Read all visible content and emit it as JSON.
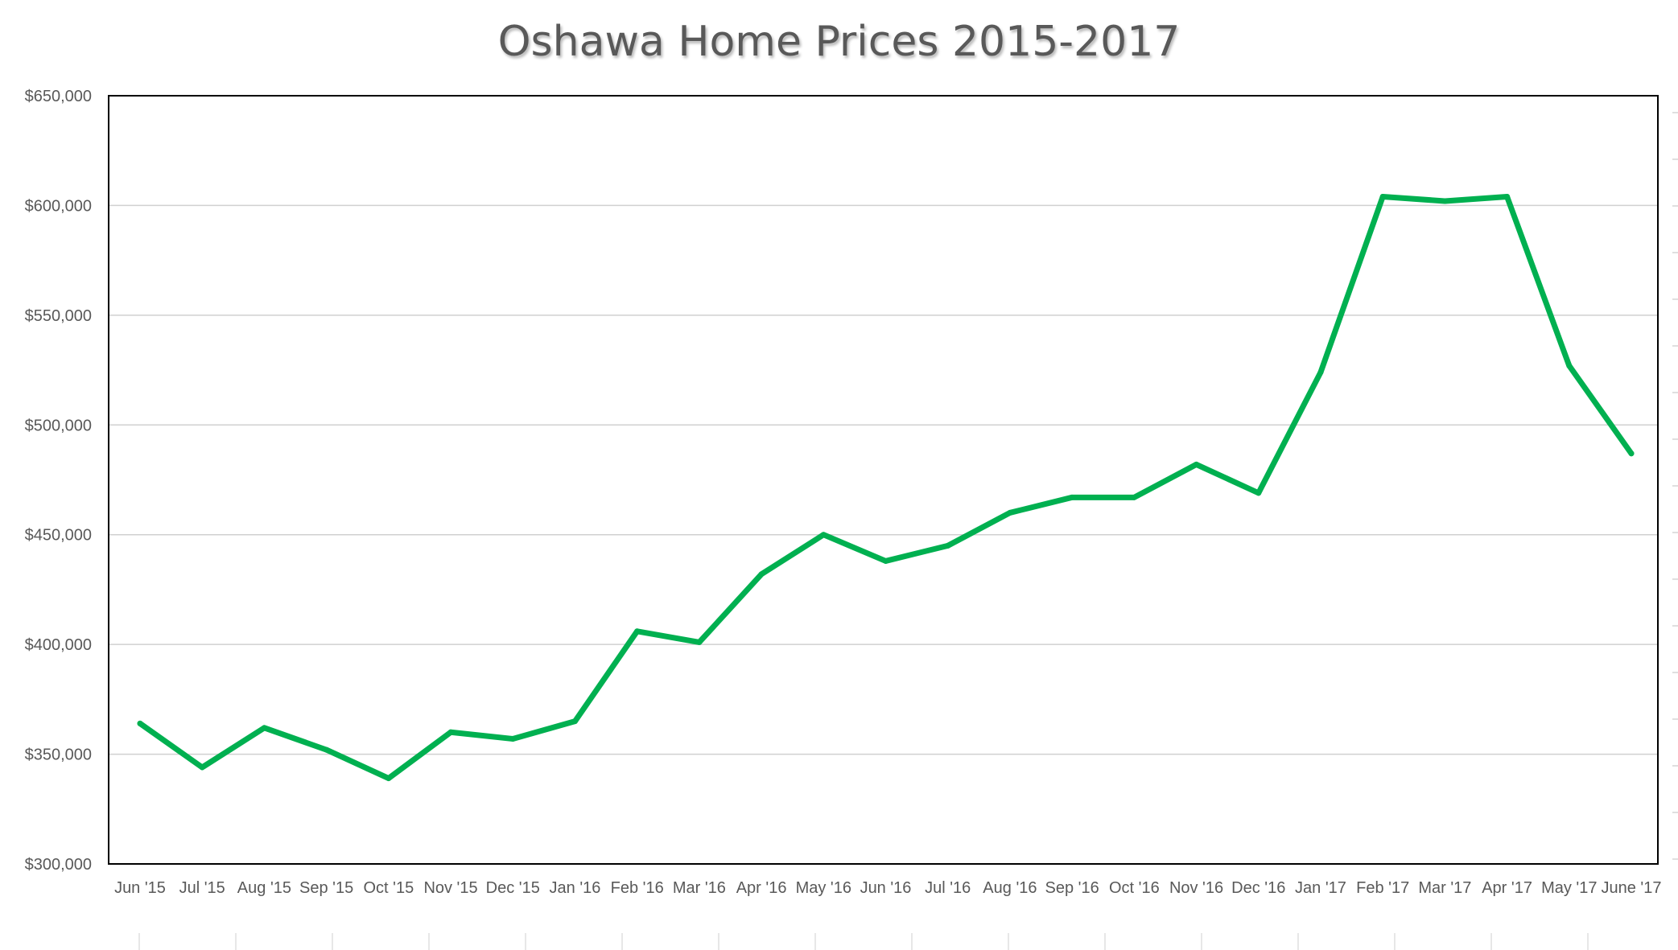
{
  "chart_data": {
    "type": "line",
    "title": "Oshawa Home Prices 2015-2017",
    "xlabel": "",
    "ylabel": "",
    "ylim": [
      300000,
      650000
    ],
    "y_ticks": [
      300000,
      350000,
      400000,
      450000,
      500000,
      550000,
      600000,
      650000
    ],
    "y_tick_labels": [
      "$300,000",
      "$350,000",
      "$400,000",
      "$450,000",
      "$500,000",
      "$550,000",
      "$600,000",
      "$650,000"
    ],
    "grid": "horizontal",
    "legend": "none",
    "categories": [
      "Jun '15",
      "Jul '15",
      "Aug '15",
      "Sep '15",
      "Oct '15",
      "Nov '15",
      "Dec '15",
      "Jan '16",
      "Feb '16",
      "Mar '16",
      "Apr '16",
      "May '16",
      "Jun '16",
      "Jul '16",
      "Aug '16",
      "Sep '16",
      "Oct '16",
      "Nov '16",
      "Dec '16",
      "Jan '17",
      "Feb '17",
      "Mar '17",
      "Apr '17",
      "May '17",
      "June '17"
    ],
    "series": [
      {
        "color": "#00b050",
        "values": [
          364000,
          344000,
          362000,
          352000,
          339000,
          360000,
          357000,
          365000,
          406000,
          401000,
          432000,
          450000,
          438000,
          445000,
          460000,
          467000,
          467000,
          482000,
          469000,
          524000,
          604000,
          602000,
          604000,
          527000,
          487000
        ]
      }
    ]
  }
}
